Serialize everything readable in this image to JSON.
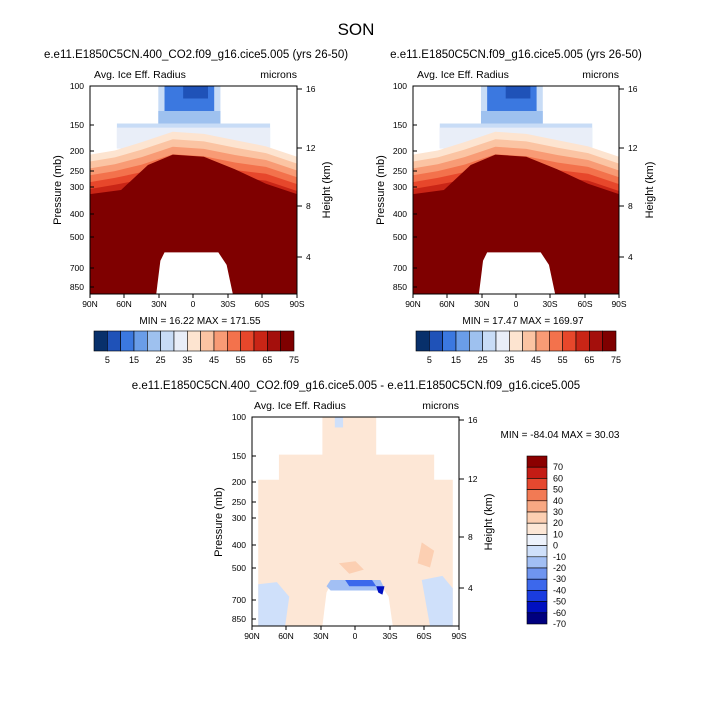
{
  "page_title": "SON",
  "colors": {
    "red_scale": [
      "#08306b",
      "#1f52b8",
      "#3b78e0",
      "#6a9de8",
      "#9ec1ef",
      "#c8dcf6",
      "#e9eef8",
      "#fde4d0",
      "#fbc4a3",
      "#f89b75",
      "#f3724c",
      "#e7472b",
      "#c92516",
      "#a40f0c",
      "#7f0000"
    ],
    "diff_scale": [
      "#00007f",
      "#0010c0",
      "#1a3ce0",
      "#3c68ec",
      "#6f95f0",
      "#a2bff4",
      "#cfe0fa",
      "#eef3fc",
      "#fde7d6",
      "#fccfb2",
      "#f8a883",
      "#f27a54",
      "#e5482f",
      "#c41c15",
      "#8b0000"
    ]
  },
  "chart_data": [
    {
      "type": "heatmap",
      "id": "panel-left",
      "title": "e.e11.E1850C5CN.400_CO2.f09_g16.cice5.005 (yrs 26-50)",
      "left_label": "Avg. Ice Eff. Radius",
      "right_label": "microns",
      "ylabel": "Pressure (mb)",
      "y2label": "Height (km)",
      "x_ticks": [
        "90N",
        "60N",
        "30N",
        "0",
        "30S",
        "60S",
        "90S"
      ],
      "y_ticks": [
        "100",
        "150",
        "200",
        "250",
        "300",
        "400",
        "500",
        "700",
        "850"
      ],
      "y2_ticks": [
        "16",
        "12",
        "8",
        "4"
      ],
      "stats": "MIN = 16.22  MAX = 171.55",
      "min": 16.22,
      "max": 171.55,
      "colorbar": {
        "labels": [
          "5",
          "15",
          "25",
          "35",
          "45",
          "55",
          "65",
          "75"
        ],
        "levels": [
          0,
          5,
          10,
          15,
          20,
          25,
          30,
          35,
          40,
          45,
          50,
          55,
          60,
          65,
          70,
          75
        ]
      }
    },
    {
      "type": "heatmap",
      "id": "panel-right",
      "title": "e.e11.E1850C5CN.f09_g16.cice5.005 (yrs 26-50)",
      "left_label": "Avg. Ice Eff. Radius",
      "right_label": "microns",
      "ylabel": "Pressure (mb)",
      "y2label": "Height (km)",
      "x_ticks": [
        "90N",
        "60N",
        "30N",
        "0",
        "30S",
        "60S",
        "90S"
      ],
      "y_ticks": [
        "100",
        "150",
        "200",
        "250",
        "300",
        "400",
        "500",
        "700",
        "850"
      ],
      "y2_ticks": [
        "16",
        "12",
        "8",
        "4"
      ],
      "stats": "MIN = 17.47  MAX = 169.97",
      "min": 17.47,
      "max": 169.97,
      "colorbar": {
        "labels": [
          "5",
          "15",
          "25",
          "35",
          "45",
          "55",
          "65",
          "75"
        ],
        "levels": [
          0,
          5,
          10,
          15,
          20,
          25,
          30,
          35,
          40,
          45,
          50,
          55,
          60,
          65,
          70,
          75
        ]
      }
    },
    {
      "type": "heatmap",
      "id": "panel-diff",
      "title": "e.e11.E1850C5CN.400_CO2.f09_g16.cice5.005 - e.e11.E1850C5CN.f09_g16.cice5.005",
      "left_label": "Avg. Ice Eff. Radius",
      "right_label": "microns",
      "ylabel": "Pressure (mb)",
      "y2label": "Height (km)",
      "x_ticks": [
        "90N",
        "60N",
        "30N",
        "0",
        "30S",
        "60S",
        "90S"
      ],
      "y_ticks": [
        "100",
        "150",
        "200",
        "250",
        "300",
        "400",
        "500",
        "700",
        "850"
      ],
      "y2_ticks": [
        "16",
        "12",
        "8",
        "4"
      ],
      "stats": "MIN = -84.04  MAX = 30.03",
      "min": -84.04,
      "max": 30.03,
      "colorbar": {
        "labels": [
          "70",
          "60",
          "50",
          "40",
          "30",
          "20",
          "10",
          "0",
          "-10",
          "-20",
          "-30",
          "-40",
          "-50",
          "-60",
          "-70"
        ],
        "levels": [
          70,
          60,
          50,
          40,
          30,
          20,
          10,
          0,
          -10,
          -20,
          -30,
          -40,
          -50,
          -60,
          -70
        ]
      }
    }
  ]
}
